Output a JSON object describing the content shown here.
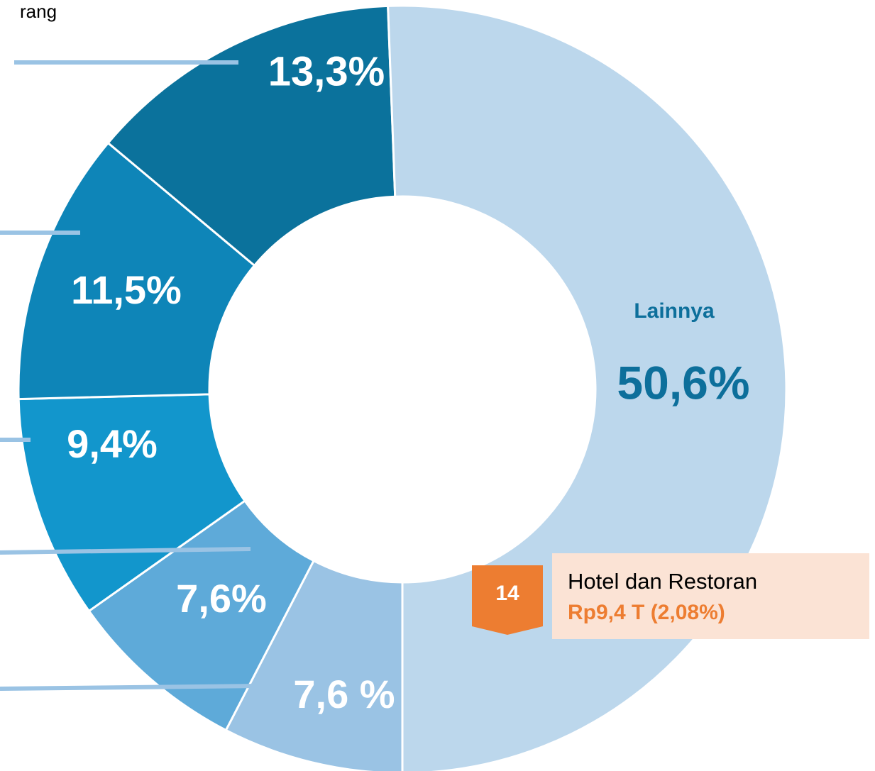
{
  "chart_data": {
    "type": "pie",
    "donut": true,
    "categories": [
      null,
      null,
      null,
      null,
      null,
      "Lainnya"
    ],
    "values": [
      7.6,
      7.6,
      9.4,
      11.5,
      13.3,
      50.6
    ],
    "value_labels": [
      "7,6 %",
      "7,6%",
      "9,4%",
      "11,5%",
      "13,3%",
      "50,6%"
    ],
    "colors": [
      "#9ac3e4",
      "#5eaad9",
      "#1296cc",
      "#0e85b8",
      "#0b729c",
      "#bcd7ec"
    ],
    "annotations": {
      "header_fragment": "rang",
      "callout": {
        "number": 14,
        "title": "Hotel dan Restoran",
        "detail": "Rp9,4 T (2,08%)"
      }
    }
  }
}
